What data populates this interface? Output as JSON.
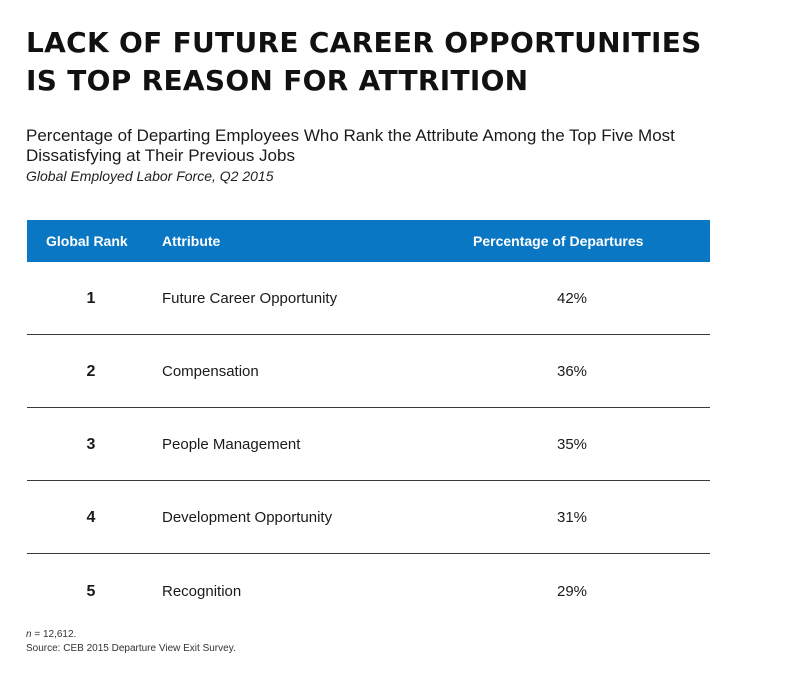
{
  "title": {
    "line1": "LACK OF FUTURE CAREER OPPORTUNITIES",
    "line2": "IS TOP REASON FOR ATTRITION"
  },
  "subtitle": "Percentage of Departing Employees Who Rank the Attribute Among the Top Five Most Dissatisfying at Their Previous Jobs",
  "scope": "Global Employed Labor Force, Q2 2015",
  "colors": {
    "header_bg": "#0a77c4",
    "header_text": "#ffffff"
  },
  "table": {
    "headers": {
      "rank": "Global Rank",
      "attribute": "Attribute",
      "percentage": "Percentage of Departures"
    },
    "rows": [
      {
        "rank": "1",
        "attribute": "Future Career Opportunity",
        "percentage": "42%"
      },
      {
        "rank": "2",
        "attribute": "Compensation",
        "percentage": "36%"
      },
      {
        "rank": "3",
        "attribute": "People Management",
        "percentage": "35%"
      },
      {
        "rank": "4",
        "attribute": "Development Opportunity",
        "percentage": "31%"
      },
      {
        "rank": "5",
        "attribute": "Recognition",
        "percentage": "29%"
      }
    ]
  },
  "footnote": {
    "n_label": "n",
    "n_value": " = 12,612."
  },
  "source": "Source: CEB 2015 Departure View Exit Survey."
}
